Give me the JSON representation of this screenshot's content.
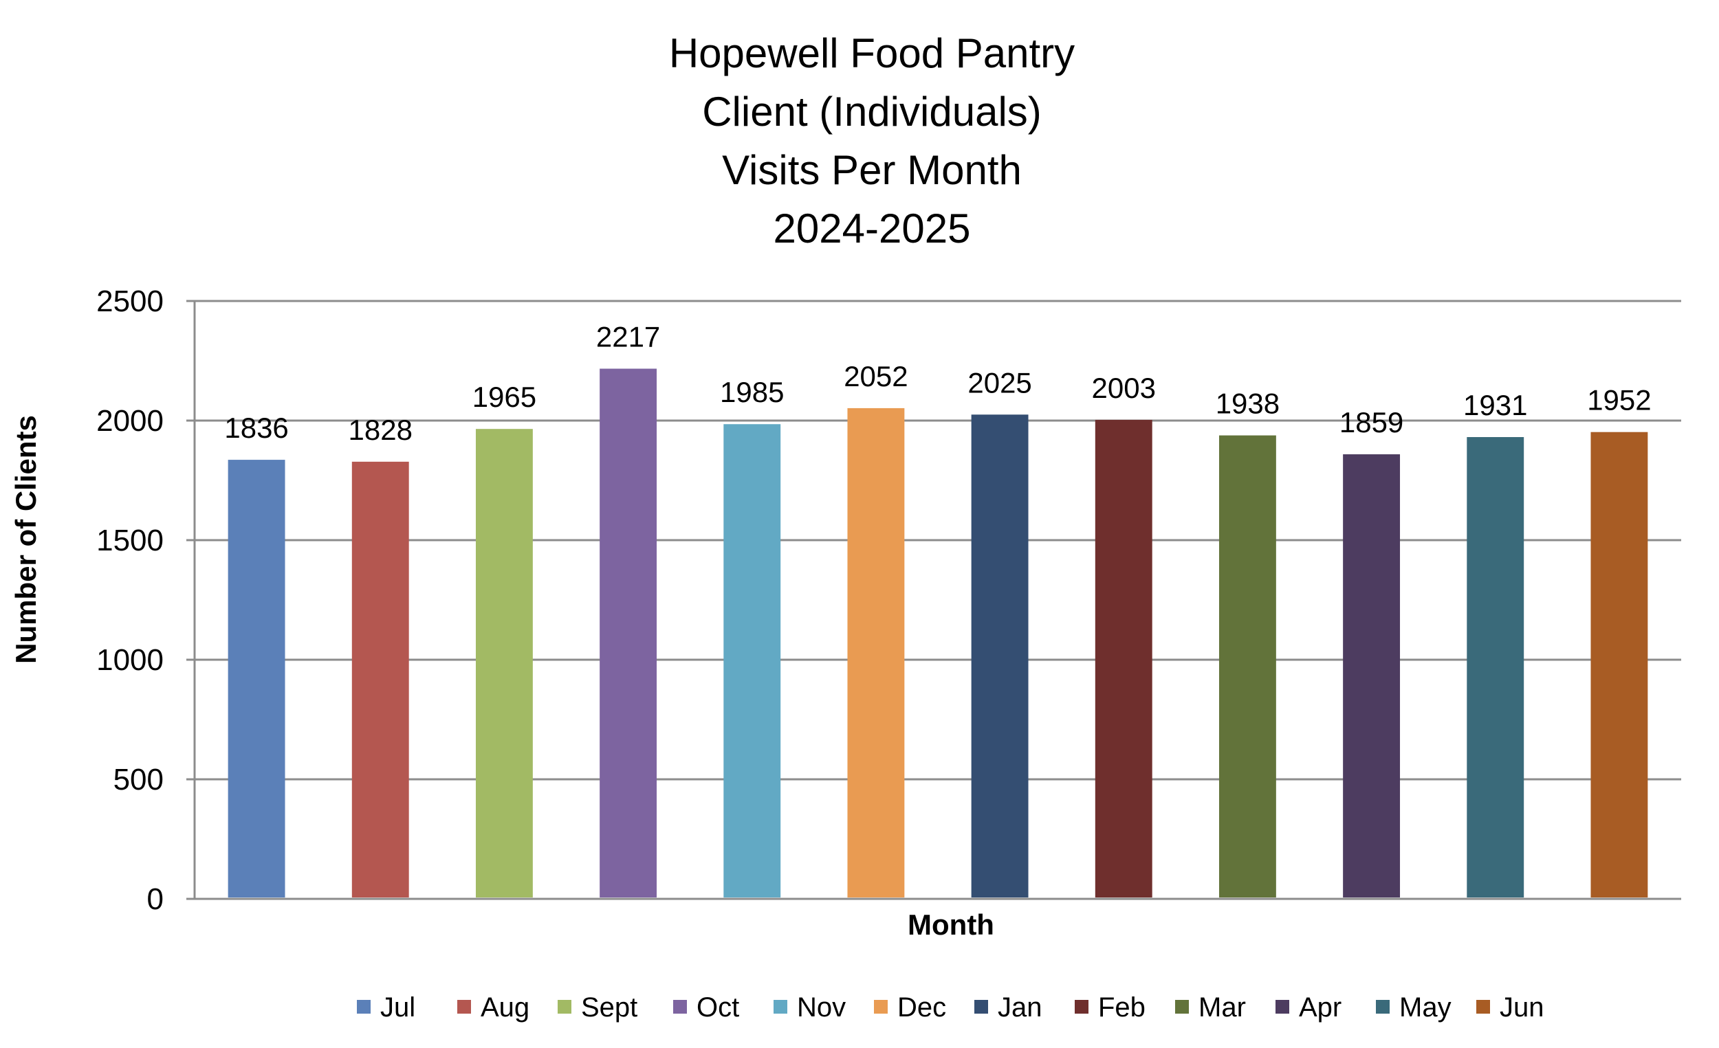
{
  "chart_data": {
    "type": "bar",
    "title_lines": [
      "Hopewell Food Pantry",
      "Client (Individuals)",
      "Visits Per Month",
      "2024-2025"
    ],
    "xlabel": "Month",
    "ylabel": "Number of Clients",
    "ylim": [
      0,
      2500
    ],
    "yticks": [
      0,
      500,
      1000,
      1500,
      2000,
      2500
    ],
    "grid": true,
    "legend_position": "bottom",
    "categories": [
      "Jul",
      "Aug",
      "Sept",
      "Oct",
      "Nov",
      "Dec",
      "Jan",
      "Feb",
      "Mar",
      "Apr",
      "May",
      "Jun"
    ],
    "values": [
      1836,
      1828,
      1965,
      2217,
      1985,
      2052,
      2025,
      2003,
      1938,
      1859,
      1931,
      1952
    ],
    "colors": [
      "#5B80B8",
      "#B45750",
      "#A2BA64",
      "#7D64A0",
      "#62A9C4",
      "#E99B52",
      "#344E72",
      "#6F2F2D",
      "#62733A",
      "#4D3C60",
      "#3A6A7A",
      "#A85C24"
    ]
  }
}
